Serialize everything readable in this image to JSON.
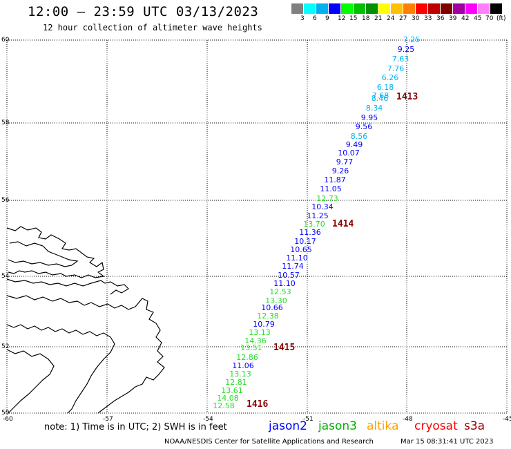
{
  "header": {
    "title": "12:00 – 23:59 UTC 03/13/2023",
    "subtitle": "12 hour collection of altimeter wave heights"
  },
  "color_scale": {
    "swatches": [
      "#808080",
      "#00ffff",
      "#00b0f0",
      "#0000ff",
      "#00ff00",
      "#00c000",
      "#009000",
      "#ffff00",
      "#ffc000",
      "#ff8000",
      "#ff0000",
      "#c00000",
      "#800000",
      "#a000a0",
      "#ff00ff",
      "#ff80ff",
      "#000000"
    ],
    "labels": [
      "3",
      "6",
      "9",
      "12",
      "15",
      "18",
      "21",
      "24",
      "27",
      "30",
      "33",
      "36",
      "39",
      "42",
      "45",
      "70",
      "(ft)"
    ]
  },
  "axes": {
    "lat_labels": [
      "60",
      "58",
      "56",
      "54",
      "52",
      "50"
    ],
    "lon_labels": [
      "-60",
      "-57",
      "-54",
      "-51",
      "-48",
      "-45"
    ]
  },
  "observations": [
    {
      "v": "7.25",
      "c": "#00b0f0"
    },
    {
      "v": "9.25",
      "c": "#0000ff"
    },
    {
      "v": "7.63",
      "c": "#00b0f0"
    },
    {
      "v": "7.76",
      "c": "#00b0f0"
    },
    {
      "v": "6.26",
      "c": "#00b0f0"
    },
    {
      "v": "6.18",
      "c": "#00b0f0"
    },
    {
      "v": "7.68",
      "c": "#00b0f0"
    },
    {
      "v": "8.46",
      "c": "#00b0f0"
    },
    {
      "v": "8.34",
      "c": "#00b0f0"
    },
    {
      "v": "9.95",
      "c": "#0000ff"
    },
    {
      "v": "9.56",
      "c": "#0000ff"
    },
    {
      "v": "8.56",
      "c": "#00b0f0"
    },
    {
      "v": "9.49",
      "c": "#0000ff"
    },
    {
      "v": "10.07",
      "c": "#0000ff"
    },
    {
      "v": "9.77",
      "c": "#0000ff"
    },
    {
      "v": "9.26",
      "c": "#0000ff"
    },
    {
      "v": "11.87",
      "c": "#0000ff"
    },
    {
      "v": "11.05",
      "c": "#0000ff"
    },
    {
      "v": "12.73",
      "c": "#22dd22"
    },
    {
      "v": "10.34",
      "c": "#0000ff"
    },
    {
      "v": "11.25",
      "c": "#0000ff"
    },
    {
      "v": "13.70",
      "c": "#22dd22"
    },
    {
      "v": "11.36",
      "c": "#0000ff"
    },
    {
      "v": "10.17",
      "c": "#0000ff"
    },
    {
      "v": "10.65",
      "c": "#0000ff"
    },
    {
      "v": "11.10",
      "c": "#0000ff"
    },
    {
      "v": "11.74",
      "c": "#0000ff"
    },
    {
      "v": "10.57",
      "c": "#0000ff"
    },
    {
      "v": "11.10",
      "c": "#0000ff"
    },
    {
      "v": "12.53",
      "c": "#22dd22"
    },
    {
      "v": "13.30",
      "c": "#22dd22"
    },
    {
      "v": "10.66",
      "c": "#0000ff"
    },
    {
      "v": "12.38",
      "c": "#22dd22"
    },
    {
      "v": "10.79",
      "c": "#0000ff"
    },
    {
      "v": "13.13",
      "c": "#22dd22"
    },
    {
      "v": "14.36",
      "c": "#22dd22"
    },
    {
      "v": "13.51",
      "c": "#22dd22"
    },
    {
      "v": "12.86",
      "c": "#22dd22"
    },
    {
      "v": "11.06",
      "c": "#0000ff"
    },
    {
      "v": "13.13",
      "c": "#22dd22"
    },
    {
      "v": "12.81",
      "c": "#22dd22"
    },
    {
      "v": "13.61",
      "c": "#22dd22"
    },
    {
      "v": "14.08",
      "c": "#22dd22"
    },
    {
      "v": "12.58",
      "c": "#22dd22"
    }
  ],
  "time_markers": [
    "1413",
    "1414",
    "1415",
    "1416"
  ],
  "note": "note: 1) Time is in UTC; 2) SWH is in feet",
  "satellites": [
    {
      "name": "jason2",
      "color": "#0000ff"
    },
    {
      "name": "jason3",
      "color": "#00b000"
    },
    {
      "name": "altika",
      "color": "#ffa000"
    },
    {
      "name": "cryosat",
      "color": "#ff0000"
    },
    {
      "name": "s3a",
      "color": "#a00000"
    }
  ],
  "footer": {
    "credit": "NOAA/NESDIS Center for Satellite Applications and Research",
    "timestamp": "Mar 15 08:31:41 UTC 2023"
  }
}
